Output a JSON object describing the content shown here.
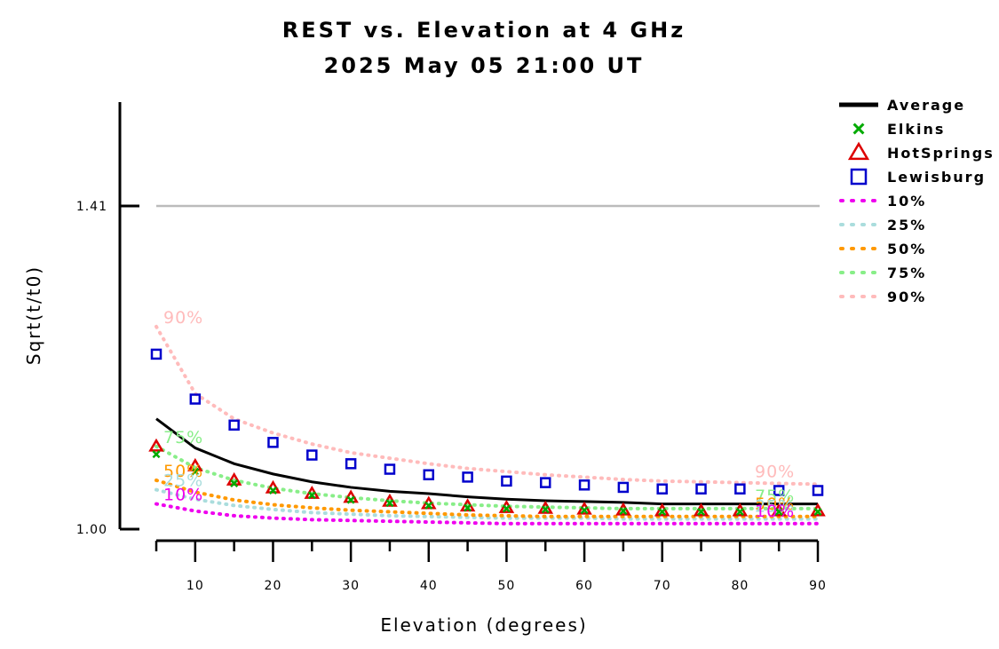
{
  "chart_data": {
    "type": "line",
    "title": "REST vs. Elevation at 4 GHz",
    "subtitle": "2025 May 05 21:00 UT",
    "xlabel": "Elevation (degrees)",
    "ylabel": "Sqrt(t/t0)",
    "xlim": [
      5,
      90
    ],
    "ylim": [
      1.0,
      1.54
    ],
    "x_ticks": [
      10,
      20,
      30,
      40,
      50,
      60,
      70,
      80,
      90
    ],
    "x_minor_ticks": [
      5,
      15,
      25,
      35,
      45,
      55,
      65,
      75,
      85
    ],
    "y_ticks": [
      {
        "value": 1.0,
        "label": "1.00"
      },
      {
        "value": 1.41,
        "label": "1.41"
      }
    ],
    "reference_line": {
      "value": 1.41,
      "color": "#bbbbbb"
    },
    "x": [
      5,
      10,
      15,
      20,
      25,
      30,
      35,
      40,
      45,
      50,
      55,
      60,
      65,
      70,
      75,
      80,
      85,
      90
    ],
    "legend_position": "right",
    "series": [
      {
        "name": "Average",
        "style": "line",
        "color": "#000000",
        "values": [
          1.14,
          1.103,
          1.083,
          1.07,
          1.06,
          1.053,
          1.048,
          1.045,
          1.041,
          1.038,
          1.036,
          1.035,
          1.034,
          1.032,
          1.032,
          1.032,
          1.032,
          1.032
        ]
      },
      {
        "name": "Elkins",
        "style": "marker",
        "marker": "x",
        "color": "#00aa00",
        "values": [
          1.095,
          1.073,
          1.058,
          1.049,
          1.043,
          1.037,
          1.033,
          1.03,
          1.027,
          1.026,
          1.025,
          1.024,
          1.023,
          1.022,
          1.022,
          1.022,
          1.022,
          1.022
        ]
      },
      {
        "name": "HotSprings",
        "style": "marker",
        "marker": "triangle",
        "color": "#dd0000",
        "values": [
          1.105,
          1.08,
          1.062,
          1.052,
          1.045,
          1.04,
          1.035,
          1.032,
          1.029,
          1.027,
          1.026,
          1.025,
          1.024,
          1.023,
          1.023,
          1.023,
          1.023,
          1.023
        ]
      },
      {
        "name": "Lewisburg",
        "style": "marker",
        "marker": "square",
        "color": "#0000cc",
        "values": [
          1.222,
          1.165,
          1.132,
          1.11,
          1.094,
          1.083,
          1.076,
          1.069,
          1.066,
          1.061,
          1.059,
          1.056,
          1.053,
          1.051,
          1.051,
          1.051,
          1.049,
          1.049
        ]
      },
      {
        "name": "10%",
        "style": "dotted",
        "color": "#ee00ee",
        "values": [
          1.032,
          1.023,
          1.017,
          1.014,
          1.012,
          1.011,
          1.01,
          1.009,
          1.008,
          1.007,
          1.007,
          1.007,
          1.007,
          1.007,
          1.007,
          1.007,
          1.007,
          1.007
        ]
      },
      {
        "name": "25%",
        "style": "dotted",
        "color": "#aadddd",
        "values": [
          1.05,
          1.038,
          1.03,
          1.025,
          1.021,
          1.019,
          1.017,
          1.016,
          1.015,
          1.014,
          1.014,
          1.014,
          1.013,
          1.013,
          1.013,
          1.013,
          1.013,
          1.013
        ]
      },
      {
        "name": "50%",
        "style": "dotted",
        "color": "#ff9900",
        "values": [
          1.062,
          1.047,
          1.037,
          1.031,
          1.027,
          1.024,
          1.022,
          1.02,
          1.018,
          1.017,
          1.016,
          1.016,
          1.016,
          1.016,
          1.016,
          1.016,
          1.016,
          1.016
        ]
      },
      {
        "name": "75%",
        "style": "dotted",
        "color": "#88ee88",
        "values": [
          1.105,
          1.078,
          1.062,
          1.052,
          1.045,
          1.04,
          1.036,
          1.033,
          1.031,
          1.029,
          1.028,
          1.027,
          1.026,
          1.026,
          1.026,
          1.026,
          1.026,
          1.026
        ]
      },
      {
        "name": "90%",
        "style": "dotted",
        "color": "#ffbbbb",
        "values": [
          1.257,
          1.172,
          1.14,
          1.122,
          1.108,
          1.097,
          1.09,
          1.083,
          1.077,
          1.073,
          1.069,
          1.066,
          1.063,
          1.061,
          1.06,
          1.059,
          1.058,
          1.057
        ]
      }
    ],
    "percentile_labels": [
      {
        "series": "90%",
        "end_labels": [
          "90%",
          "90%"
        ]
      },
      {
        "series": "75%",
        "end_labels": [
          "75%",
          "75%"
        ]
      },
      {
        "series": "50%",
        "end_labels": [
          "50%",
          "50%"
        ]
      },
      {
        "series": "25%",
        "end_labels": [
          "25%",
          "25%"
        ]
      },
      {
        "series": "10%",
        "end_labels": [
          "10%",
          "10%"
        ]
      }
    ]
  }
}
